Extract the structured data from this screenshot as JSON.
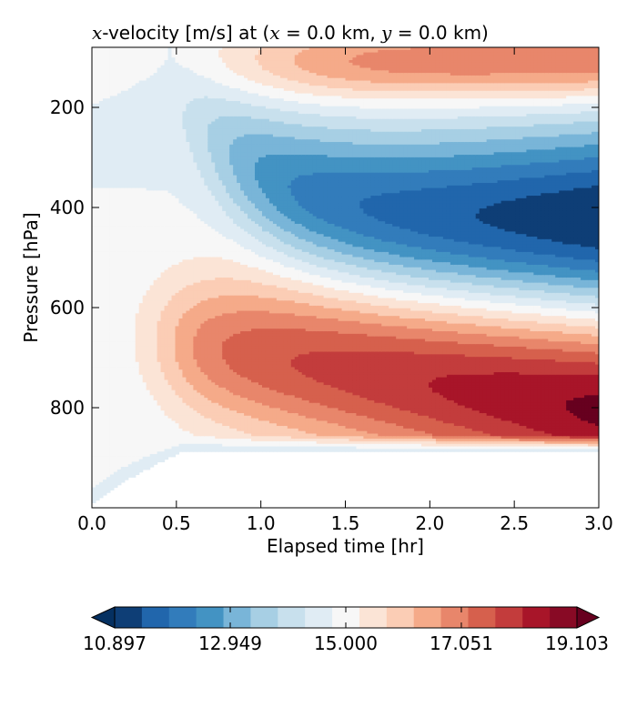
{
  "chart_data": {
    "type": "contourf",
    "title": {
      "parts": [
        {
          "text": "x",
          "style": "math"
        },
        {
          "text": "-velocity [m/s] at (",
          "style": "normal"
        },
        {
          "text": "x",
          "style": "math"
        },
        {
          "text": " = 0.0 km, ",
          "style": "normal"
        },
        {
          "text": "y",
          "style": "math"
        },
        {
          "text": " = 0.0 km)",
          "style": "normal"
        }
      ]
    },
    "xlabel": "Elapsed time [hr]",
    "ylabel": "Pressure [hPa]",
    "xlim": [
      0.0,
      3.0
    ],
    "ylim": [
      1000,
      80
    ],
    "y_inverted": true,
    "xticks": [
      0.0,
      0.5,
      1.0,
      1.5,
      2.0,
      2.5,
      3.0
    ],
    "xtick_labels": [
      "0.0",
      "0.5",
      "1.0",
      "1.5",
      "2.0",
      "2.5",
      "3.0"
    ],
    "yticks": [
      200,
      400,
      600,
      800
    ],
    "ytick_labels": [
      "200",
      "400",
      "600",
      "800"
    ],
    "grid": false,
    "colormap": "RdBu_r",
    "levels": [
      10.897,
      11.41,
      11.923,
      12.436,
      12.949,
      13.462,
      13.975,
      14.487,
      15.0,
      15.513,
      16.026,
      16.538,
      17.051,
      17.564,
      18.077,
      18.59,
      19.103
    ],
    "colorbar": {
      "orientation": "horizontal",
      "extend": "both",
      "ticks": [
        10.897,
        12.949,
        15.0,
        17.051,
        19.103
      ],
      "tick_labels": [
        "10.897",
        "12.949",
        "15.000",
        "17.051",
        "19.103"
      ],
      "colors": [
        "#053061",
        "#0e3e76",
        "#2166ac",
        "#327cbb",
        "#4393c3",
        "#79b5d8",
        "#a7cfe4",
        "#c8e0ed",
        "#e0ecf4",
        "#f7f7f7",
        "#fbe4d6",
        "#fbcdb5",
        "#f5aa89",
        "#e8866b",
        "#d6604d",
        "#c33c3c",
        "#a81529",
        "#880a25",
        "#67001f"
      ]
    }
  }
}
